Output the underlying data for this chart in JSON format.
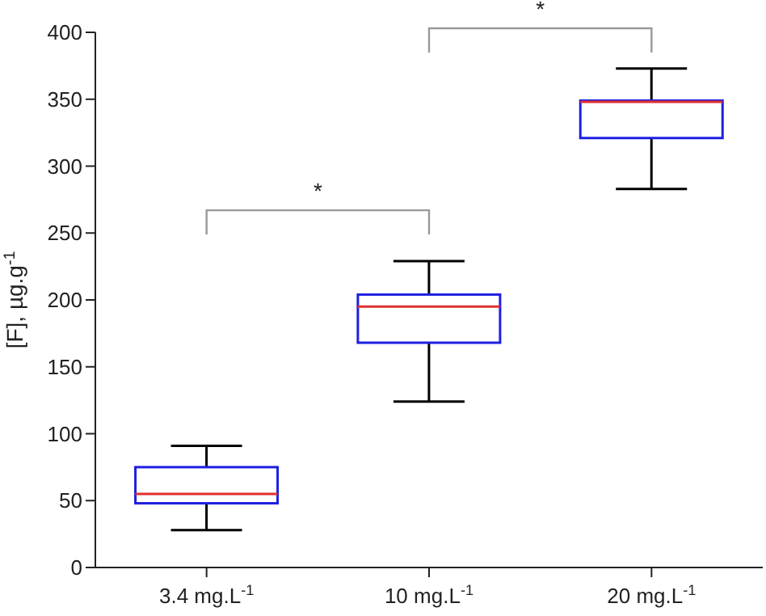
{
  "chart_data": {
    "type": "box",
    "ylabel": "[F], µg.g$^{-1}$",
    "categories": [
      "3.4 mg.L$^{-1}$",
      "10 mg.L$^{-1}$",
      "20 mg.L$^{-1}$"
    ],
    "series": [
      {
        "color": "#1f1fe0",
        "boxes": [
          {
            "low": 28,
            "q1": 48,
            "median": 55,
            "q3": 75,
            "high": 91
          },
          {
            "low": 124,
            "q1": 168,
            "median": 195,
            "q3": 204,
            "high": 229
          },
          {
            "low": 283,
            "q1": 321,
            "median": 348,
            "q3": 349,
            "high": 373
          }
        ]
      }
    ],
    "ylim": [
      0,
      400
    ],
    "yticks": [
      0,
      50,
      100,
      150,
      200,
      250,
      300,
      350,
      400
    ],
    "annotations": [
      "*",
      "*"
    ]
  }
}
